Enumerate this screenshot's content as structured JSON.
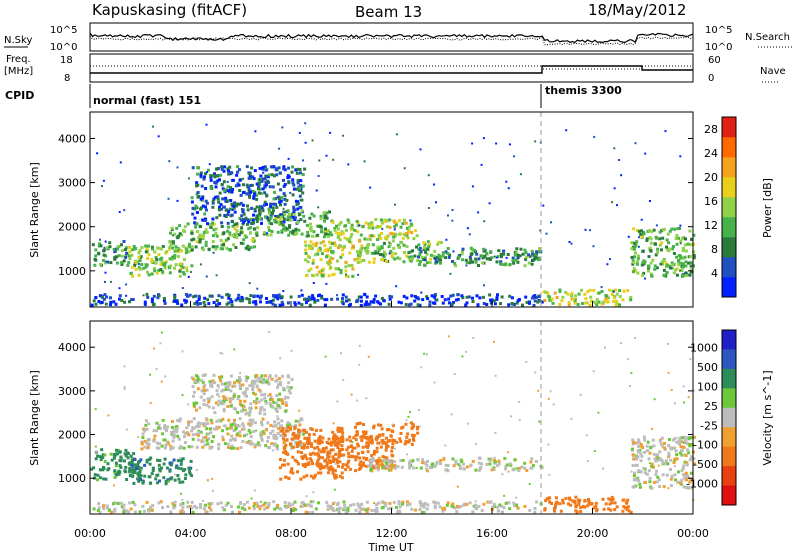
{
  "header": {
    "station": "Kapuskasing (fitACF)",
    "beam": "Beam 13",
    "date": "18/May/2012"
  },
  "summary": {
    "nsky_label": "N.Sky",
    "nsearch_label": "N.Search",
    "freq_label_1": "Freq.",
    "freq_label_2": "[MHz]",
    "nave_label": "Nave",
    "cpid_label": "CPID",
    "noise_ticks_left": [
      "10^5",
      "10^0"
    ],
    "noise_ticks_right": [
      "10^5",
      "10^0"
    ],
    "freq_ticks": [
      "18",
      "8"
    ],
    "nave_ticks": [
      "60",
      "0"
    ],
    "modes": [
      {
        "label": "normal (fast) 151",
        "start_hour": 0
      },
      {
        "label": "themis 3300",
        "start_hour": 18
      }
    ]
  },
  "colors": {
    "power_scale": [
      "#0020ff",
      "#1f4fc0",
      "#2a7a3c",
      "#47b14a",
      "#8fd24a",
      "#e8d01c",
      "#f5a21e",
      "#ff6a00",
      "#e02010"
    ],
    "velocity_scale": [
      "#2020c8",
      "#2e58c0",
      "#2d8c5a",
      "#6cc83a",
      "#bdbdbd",
      "#f0a030",
      "#f07818",
      "#e84010",
      "#e01010"
    ]
  },
  "chart_data": [
    {
      "type": "heatmap",
      "quantity": "Power",
      "ylabel": "Slant Range [km]",
      "xlabel": "",
      "xlim": [
        0,
        24
      ],
      "ylim": [
        180,
        4600
      ],
      "yticks": [
        "1000",
        "2000",
        "3000",
        "4000"
      ],
      "colorbar_label": "Power [dB]",
      "colorbar_ticks": [
        "4",
        "8",
        "12",
        "16",
        "20",
        "24",
        "28"
      ],
      "colorbar_range": [
        0,
        30
      ],
      "mode_change_hour": 18,
      "bands": [
        {
          "h0": 0.0,
          "h1": 1.5,
          "r_lo": 1150,
          "r_hi": 1700,
          "dB": 10
        },
        {
          "h0": 1.5,
          "h1": 4.0,
          "r_lo": 900,
          "r_hi": 1600,
          "dB": 14
        },
        {
          "h0": 3.0,
          "h1": 6.5,
          "r_lo": 1500,
          "r_hi": 2100,
          "dB": 12
        },
        {
          "h0": 4.0,
          "h1": 8.5,
          "r_lo": 2100,
          "r_hi": 3400,
          "dB": 6
        },
        {
          "h0": 6.5,
          "h1": 9.5,
          "r_lo": 1800,
          "r_hi": 2400,
          "dB": 12
        },
        {
          "h0": 8.5,
          "h1": 10.5,
          "r_lo": 900,
          "r_hi": 1700,
          "dB": 16
        },
        {
          "h0": 9.5,
          "h1": 13.0,
          "r_lo": 1700,
          "r_hi": 2200,
          "dB": 16
        },
        {
          "h0": 10.5,
          "h1": 14.0,
          "r_lo": 1200,
          "r_hi": 1700,
          "dB": 14
        },
        {
          "h0": 13.0,
          "h1": 18.0,
          "r_lo": 1150,
          "r_hi": 1550,
          "dB": 10
        },
        {
          "h0": 21.5,
          "h1": 24.0,
          "r_lo": 900,
          "r_hi": 2000,
          "dB": 12
        },
        {
          "h0": 0.0,
          "h1": 18.0,
          "r_lo": 250,
          "r_hi": 500,
          "dB": 4
        },
        {
          "h0": 18.0,
          "h1": 21.5,
          "r_lo": 250,
          "r_hi": 600,
          "dB": 16
        }
      ]
    },
    {
      "type": "heatmap",
      "quantity": "Velocity",
      "ylabel": "Slant Range [km]",
      "xlabel": "Time UT",
      "xlim": [
        0,
        24
      ],
      "ylim": [
        180,
        4600
      ],
      "xticks": [
        "00:00",
        "04:00",
        "08:00",
        "12:00",
        "16:00",
        "20:00",
        "00:00"
      ],
      "yticks": [
        "1000",
        "2000",
        "3000",
        "4000"
      ],
      "colorbar_label": "Velocity [m s^-1]",
      "colorbar_ticks": [
        "1000",
        "500",
        "100",
        "25",
        "-25",
        "-100",
        "-500",
        "-1000"
      ],
      "mode_change_hour": 18,
      "bands": [
        {
          "h0": 0.0,
          "h1": 2.0,
          "r_lo": 1000,
          "r_hi": 1700,
          "v": 150
        },
        {
          "h0": 1.5,
          "h1": 4.0,
          "r_lo": 900,
          "r_hi": 1500,
          "v": 400
        },
        {
          "h0": 2.0,
          "h1": 8.5,
          "r_lo": 1700,
          "r_hi": 2400,
          "v": 0
        },
        {
          "h0": 4.0,
          "h1": 8.0,
          "r_lo": 2500,
          "r_hi": 3400,
          "v": 0
        },
        {
          "h0": 7.5,
          "h1": 10.0,
          "r_lo": 1000,
          "r_hi": 2200,
          "v": -200
        },
        {
          "h0": 9.0,
          "h1": 12.0,
          "r_lo": 1200,
          "r_hi": 2000,
          "v": -250
        },
        {
          "h0": 10.5,
          "h1": 13.0,
          "r_lo": 1800,
          "r_hi": 2300,
          "v": -200
        },
        {
          "h0": 11.0,
          "h1": 18.0,
          "r_lo": 1200,
          "r_hi": 1500,
          "v": 0
        },
        {
          "h0": 21.5,
          "h1": 24.0,
          "r_lo": 800,
          "r_hi": 2000,
          "v": 0
        },
        {
          "h0": 0.0,
          "h1": 18.0,
          "r_lo": 250,
          "r_hi": 500,
          "v": 0
        },
        {
          "h0": 18.0,
          "h1": 21.5,
          "r_lo": 250,
          "r_hi": 600,
          "v": -300
        }
      ]
    }
  ]
}
